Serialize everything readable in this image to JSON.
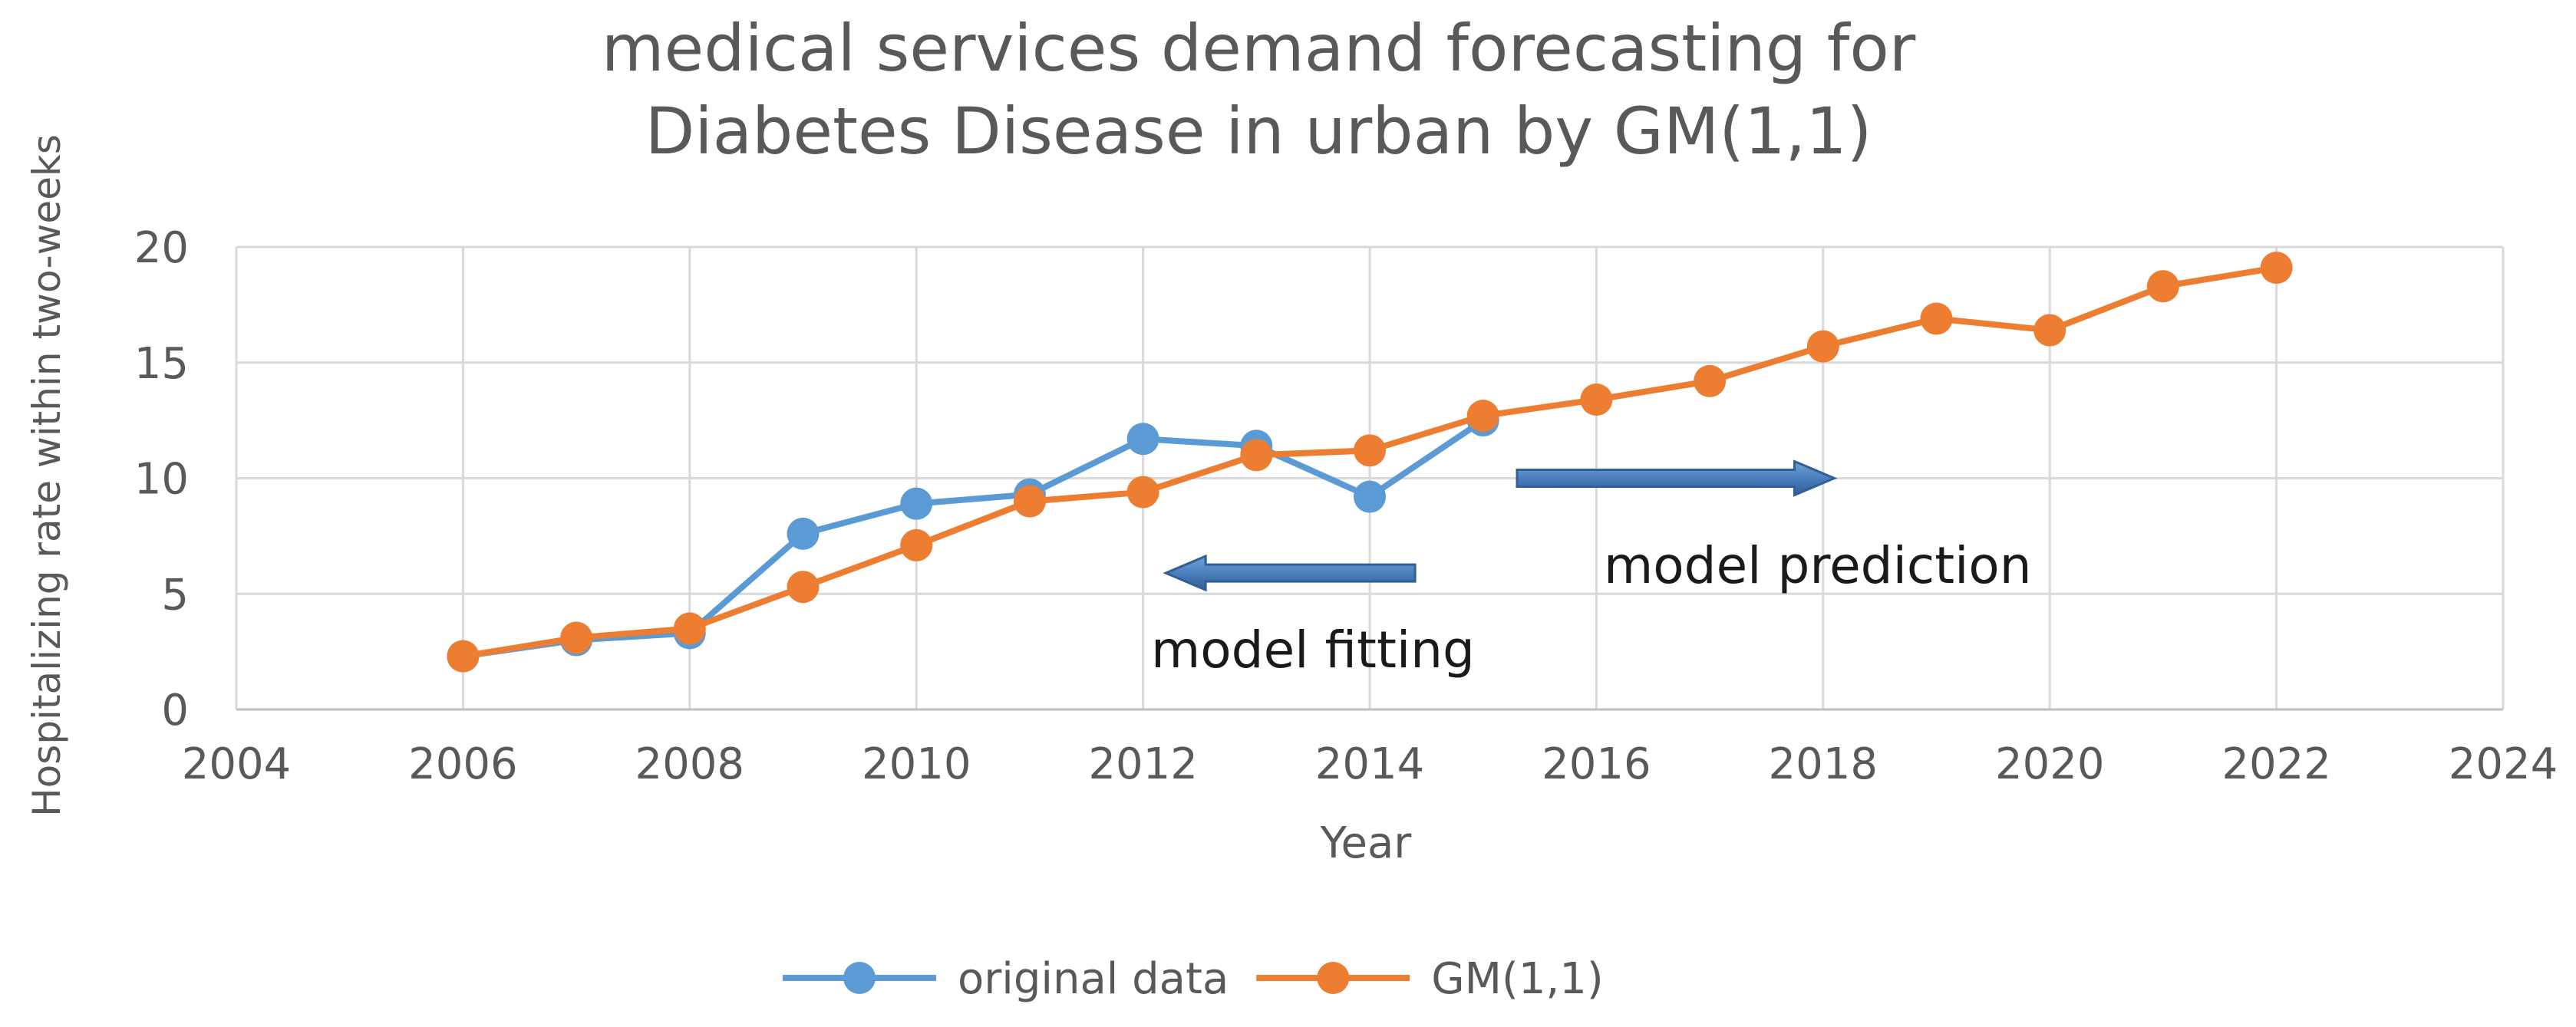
{
  "chart_data": {
    "type": "line",
    "title": [
      "medical services demand forecasting for",
      "Diabetes Disease in urban by GM(1,1)"
    ],
    "xlabel": "Year",
    "ylabel": "Hospitalizing rate within two-weeks",
    "xlim": [
      2004,
      2024
    ],
    "ylim": [
      0,
      20
    ],
    "xticks": [
      2004,
      2006,
      2008,
      2010,
      2012,
      2014,
      2016,
      2018,
      2020,
      2022,
      2024
    ],
    "yticks": [
      0,
      5,
      10,
      15,
      20
    ],
    "grid": true,
    "legend_position": "bottom",
    "series": [
      {
        "name": "original data",
        "color": "#5B9BD5",
        "x": [
          2006,
          2007,
          2008,
          2009,
          2010,
          2011,
          2012,
          2013,
          2014,
          2015
        ],
        "y": [
          2.3,
          3.0,
          3.3,
          7.6,
          8.9,
          9.3,
          11.7,
          11.4,
          9.2,
          12.5
        ]
      },
      {
        "name": "GM(1,1)",
        "color": "#ED7D31",
        "x": [
          2006,
          2007,
          2008,
          2009,
          2010,
          2011,
          2012,
          2013,
          2014,
          2015,
          2016,
          2017,
          2018,
          2019,
          2020,
          2021,
          2022
        ],
        "y": [
          2.3,
          3.1,
          3.5,
          5.3,
          7.1,
          9.0,
          9.4,
          11.0,
          11.2,
          12.7,
          13.4,
          14.2,
          15.7,
          16.9,
          16.4,
          18.3,
          19.1
        ]
      }
    ],
    "annotations": [
      {
        "text": "model fitting",
        "arrow": "left",
        "x_from": 2014.4,
        "x_to": 2012.2,
        "y": 5.9
      },
      {
        "text": "model prediction",
        "arrow": "right",
        "x_from": 2015.3,
        "x_to": 2018.1,
        "y": 10.0
      }
    ]
  }
}
